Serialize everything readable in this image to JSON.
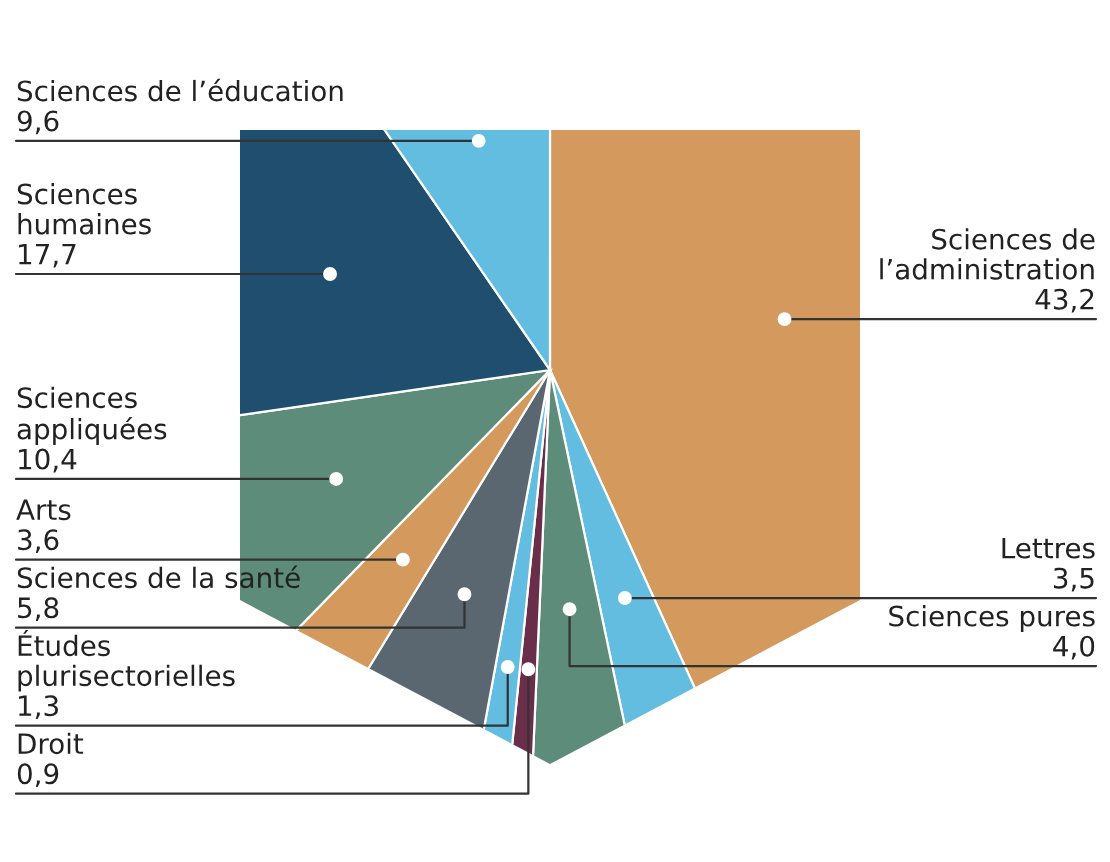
{
  "chart_data": {
    "type": "pie",
    "categories": [
      "Sciences de\nl’administration",
      "Lettres",
      "Sciences pures",
      "Droit",
      "Études\nplurisectorielles",
      "Sciences de la santé",
      "Arts",
      "Sciences\nappliquées",
      "Sciences\nhumaines",
      "Sciences de l’éducation"
    ],
    "values": [
      43.2,
      3.5,
      4.0,
      0.9,
      1.3,
      5.8,
      3.6,
      10.4,
      17.7,
      9.6
    ],
    "value_labels": [
      "43,2",
      "3,5",
      "4,0",
      "0,9",
      "1,3",
      "5,8",
      "3,6",
      "10,4",
      "17,7",
      "9,6"
    ],
    "colors": [
      "#d4995c",
      "#63bde0",
      "#5e8c7a",
      "#6b2e4a",
      "#63bde0",
      "#5a6670",
      "#d4995c",
      "#5e8c7a",
      "#1f4e6e",
      "#63bde0"
    ]
  }
}
